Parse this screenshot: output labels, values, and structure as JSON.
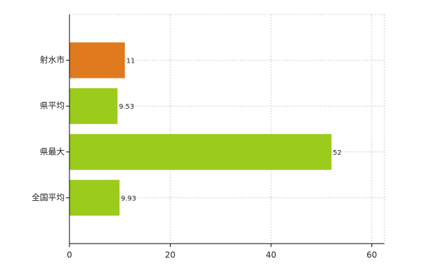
{
  "chart_data": {
    "type": "hbar",
    "categories": [
      "射水市",
      "県平均",
      "県最大",
      "全国平均"
    ],
    "values": [
      11,
      9.53,
      52,
      9.93
    ],
    "colors": [
      "#e07a1f",
      "#9bcb1b",
      "#9bcb1b",
      "#9bcb1b"
    ],
    "xlim": [
      0,
      62.5
    ],
    "xticks": [
      0,
      20,
      40,
      60
    ],
    "grid": true
  }
}
